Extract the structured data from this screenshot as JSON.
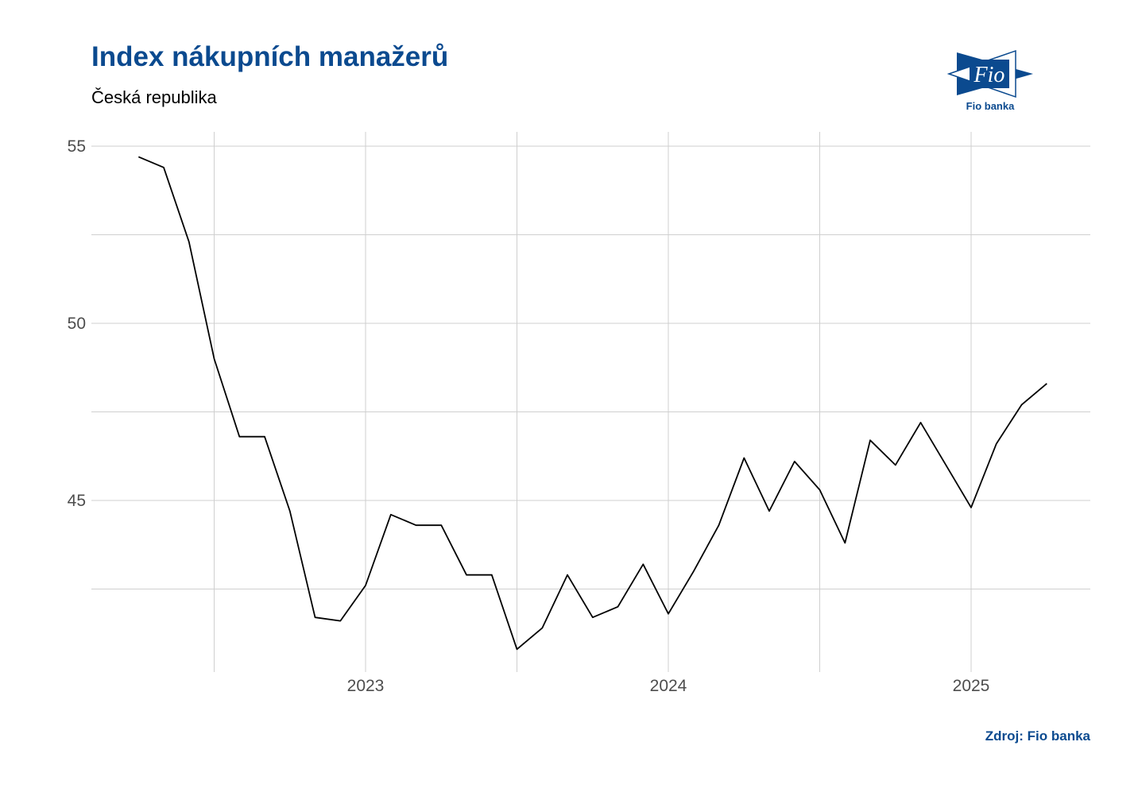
{
  "title": "Index nákupních manažerů",
  "subtitle": "Česká republika",
  "source": "Zdroj: Fio banka",
  "logo": {
    "mark": "Fio",
    "name": "Fio banka",
    "color": "#0b4a8f"
  },
  "chart_data": {
    "type": "line",
    "title": "Index nákupních manažerů",
    "subtitle": "Česká republika",
    "xlabel": "",
    "ylabel": "",
    "x": [
      "2022-04",
      "2022-05",
      "2022-06",
      "2022-07",
      "2022-08",
      "2022-09",
      "2022-10",
      "2022-11",
      "2022-12",
      "2023-01",
      "2023-02",
      "2023-03",
      "2023-04",
      "2023-05",
      "2023-06",
      "2023-07",
      "2023-08",
      "2023-09",
      "2023-10",
      "2023-11",
      "2023-12",
      "2024-01",
      "2024-02",
      "2024-03",
      "2024-04",
      "2024-05",
      "2024-06",
      "2024-07",
      "2024-08",
      "2024-09",
      "2024-10",
      "2024-11",
      "2024-12",
      "2025-01",
      "2025-02",
      "2025-03",
      "2025-04"
    ],
    "series": [
      {
        "values": [
          54.7,
          54.4,
          52.3,
          49.0,
          46.8,
          46.8,
          44.7,
          41.7,
          41.6,
          42.6,
          44.6,
          44.3,
          44.3,
          42.9,
          42.9,
          40.8,
          41.4,
          42.9,
          41.7,
          42.0,
          43.2,
          41.8,
          43.0,
          44.3,
          46.2,
          44.7,
          46.1,
          45.3,
          43.8,
          46.7,
          46.0,
          47.2,
          46.0,
          44.8,
          46.6,
          47.7,
          48.3
        ],
        "color": "#000000"
      }
    ],
    "xticks": [
      "2023",
      "2024",
      "2025"
    ],
    "yticks": [
      45,
      50,
      55
    ],
    "ylim": [
      40.2,
      55.6
    ],
    "grid": true,
    "legend": "none"
  }
}
